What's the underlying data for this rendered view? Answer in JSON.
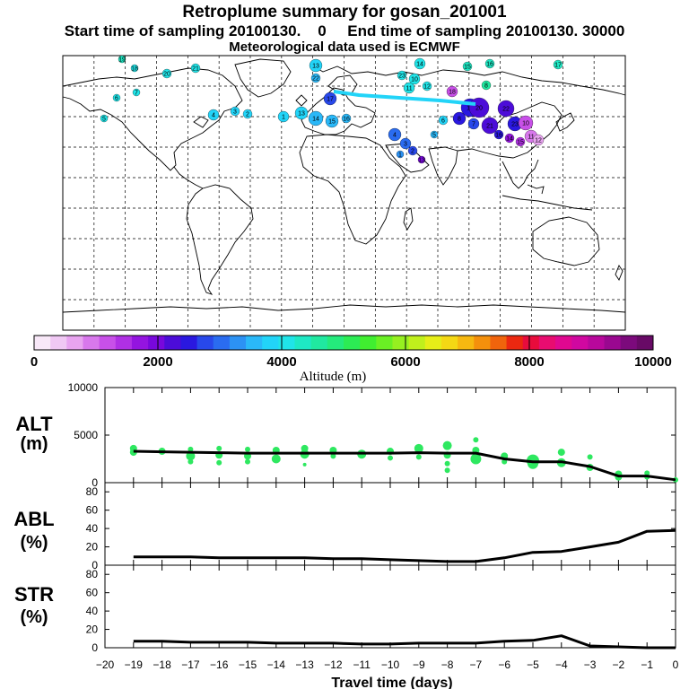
{
  "header": {
    "title": "Retroplume summary for gosan_201001",
    "sampling_line": "Start time of sampling 20100130.    0     End time of sampling 20100130. 30000",
    "met_line": "Meteorological data used is ECMWF"
  },
  "colorbar": {
    "tick_labels": [
      "0",
      "2000",
      "4000",
      "6000",
      "8000",
      "10000"
    ],
    "title": "Altitude (m)",
    "colors": [
      "#f8e8f8",
      "#f0c8f4",
      "#e8a4f0",
      "#d878ec",
      "#c850e8",
      "#b030e4",
      "#9414e0",
      "#7808dc",
      "#4c0cd8",
      "#2a18e0",
      "#2848ea",
      "#2a6cf0",
      "#2c92f4",
      "#2ab8f8",
      "#22d4f8",
      "#20e4e8",
      "#1ee8c4",
      "#20e8a0",
      "#24ea7c",
      "#2cec54",
      "#40ee30",
      "#6af024",
      "#96f020",
      "#c0f01c",
      "#e6ee18",
      "#f4d814",
      "#f6b810",
      "#f4900c",
      "#f0640c",
      "#ec2810",
      "#e80c3c",
      "#e80c70",
      "#e00890",
      "#d008a0",
      "#b8089c",
      "#9a0890",
      "#7c0a7c",
      "#680a66"
    ]
  },
  "map": {
    "plume_numbers": [
      "13",
      "14",
      "15",
      "16",
      "17",
      "18",
      "19",
      "20",
      "21",
      "22",
      "23",
      "10",
      "11",
      "12",
      "8",
      "7",
      "6",
      "5",
      "4",
      "3",
      "2",
      "1"
    ]
  },
  "chart_data": [
    {
      "type": "line",
      "id": "alt",
      "ylabel": "ALT",
      "yunit": "(m)",
      "ylim": [
        0,
        10000
      ],
      "yticks": [
        0,
        5000,
        10000
      ],
      "x": [
        -19,
        -18,
        -17,
        -16,
        -15,
        -14,
        -13,
        -12,
        -11,
        -10,
        -9,
        -8,
        -7,
        -6,
        -5,
        -4,
        -3,
        -2,
        -1,
        0
      ],
      "values": [
        3300,
        3250,
        3200,
        3150,
        3100,
        3100,
        3100,
        3100,
        3100,
        3100,
        3150,
        3100,
        3100,
        2500,
        2200,
        2200,
        1700,
        700,
        700,
        300
      ],
      "scatter": [
        {
          "x": -19,
          "y": 3600,
          "s": 4
        },
        {
          "x": -19,
          "y": 3200,
          "s": 4
        },
        {
          "x": -18,
          "y": 3300,
          "s": 4
        },
        {
          "x": -17,
          "y": 3500,
          "s": 3
        },
        {
          "x": -17,
          "y": 2800,
          "s": 5
        },
        {
          "x": -17,
          "y": 2200,
          "s": 3
        },
        {
          "x": -16,
          "y": 3600,
          "s": 3
        },
        {
          "x": -16,
          "y": 2900,
          "s": 4
        },
        {
          "x": -16,
          "y": 2100,
          "s": 3
        },
        {
          "x": -15,
          "y": 3500,
          "s": 3
        },
        {
          "x": -15,
          "y": 2800,
          "s": 4
        },
        {
          "x": -15,
          "y": 2200,
          "s": 3
        },
        {
          "x": -14,
          "y": 3400,
          "s": 4
        },
        {
          "x": -14,
          "y": 2500,
          "s": 5
        },
        {
          "x": -13,
          "y": 3600,
          "s": 4
        },
        {
          "x": -13,
          "y": 3000,
          "s": 5
        },
        {
          "x": -13,
          "y": 1900,
          "s": 2
        },
        {
          "x": -12,
          "y": 3400,
          "s": 4
        },
        {
          "x": -12,
          "y": 2800,
          "s": 3
        },
        {
          "x": -11,
          "y": 3000,
          "s": 5
        },
        {
          "x": -10,
          "y": 3300,
          "s": 4
        },
        {
          "x": -10,
          "y": 2600,
          "s": 3
        },
        {
          "x": -9,
          "y": 3600,
          "s": 5
        },
        {
          "x": -9,
          "y": 2700,
          "s": 3
        },
        {
          "x": -8,
          "y": 3900,
          "s": 5
        },
        {
          "x": -8,
          "y": 2900,
          "s": 4
        },
        {
          "x": -8,
          "y": 2000,
          "s": 3
        },
        {
          "x": -8,
          "y": 1300,
          "s": 3
        },
        {
          "x": -7,
          "y": 4500,
          "s": 3
        },
        {
          "x": -7,
          "y": 3400,
          "s": 4
        },
        {
          "x": -7,
          "y": 2500,
          "s": 6
        },
        {
          "x": -6,
          "y": 2800,
          "s": 4
        },
        {
          "x": -6,
          "y": 2200,
          "s": 3
        },
        {
          "x": -5,
          "y": 2300,
          "s": 7
        },
        {
          "x": -5,
          "y": 2000,
          "s": 6
        },
        {
          "x": -4,
          "y": 3200,
          "s": 4
        },
        {
          "x": -4,
          "y": 2100,
          "s": 5
        },
        {
          "x": -3,
          "y": 2700,
          "s": 3
        },
        {
          "x": -3,
          "y": 1600,
          "s": 4
        },
        {
          "x": -2,
          "y": 900,
          "s": 4
        },
        {
          "x": -2,
          "y": 600,
          "s": 4
        },
        {
          "x": -1,
          "y": 1000,
          "s": 3
        },
        {
          "x": -1,
          "y": 600,
          "s": 3
        },
        {
          "x": 0,
          "y": 300,
          "s": 3
        }
      ]
    },
    {
      "type": "line",
      "id": "abl",
      "ylabel": "ABL",
      "yunit": "(%)",
      "ylim": [
        0,
        90
      ],
      "yticks": [
        0,
        20,
        40,
        60,
        80
      ],
      "x": [
        -19,
        -18,
        -17,
        -16,
        -15,
        -14,
        -13,
        -12,
        -11,
        -10,
        -9,
        -8,
        -7,
        -6,
        -5,
        -4,
        -3,
        -2,
        -1,
        0
      ],
      "values": [
        9,
        9,
        9,
        8,
        8,
        8,
        8,
        7,
        7,
        6,
        5,
        4,
        4,
        8,
        14,
        15,
        20,
        25,
        37,
        38
      ]
    },
    {
      "type": "line",
      "id": "str",
      "ylabel": "STR",
      "yunit": "(%)",
      "ylim": [
        0,
        90
      ],
      "yticks": [
        0,
        20,
        40,
        60,
        80
      ],
      "x": [
        -19,
        -18,
        -17,
        -16,
        -15,
        -14,
        -13,
        -12,
        -11,
        -10,
        -9,
        -8,
        -7,
        -6,
        -5,
        -4,
        -3,
        -2,
        -1,
        0
      ],
      "values": [
        7,
        7,
        6,
        6,
        6,
        5,
        5,
        5,
        4,
        4,
        5,
        5,
        5,
        7,
        8,
        13,
        2,
        1,
        0,
        0
      ]
    }
  ],
  "xaxis": {
    "label": "Travel time (days)",
    "ticks": [
      "−20",
      "−19",
      "−18",
      "−17",
      "−16",
      "−15",
      "−14",
      "−13",
      "−12",
      "−11",
      "−10",
      "−9",
      "−8",
      "−7",
      "−6",
      "−5",
      "−4",
      "−3",
      "−2",
      "−1",
      "0"
    ]
  }
}
